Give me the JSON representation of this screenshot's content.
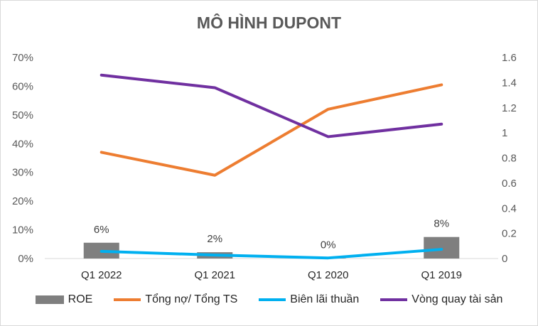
{
  "chart_data": {
    "type": "bar+line",
    "title": "MÔ HÌNH DUPONT",
    "categories": [
      "Q1 2022",
      "Q1 2021",
      "Q1 2020",
      "Q1 2019"
    ],
    "left_axis": {
      "ylim": [
        0,
        0.7
      ],
      "ticks": [
        0,
        0.1,
        0.2,
        0.3,
        0.4,
        0.5,
        0.6,
        0.7
      ],
      "tick_labels": [
        "0%",
        "10%",
        "20%",
        "30%",
        "40%",
        "50%",
        "60%",
        "70%"
      ]
    },
    "right_axis": {
      "ylim": [
        0,
        1.6
      ],
      "ticks": [
        0,
        0.2,
        0.4,
        0.6,
        0.8,
        1,
        1.2,
        1.4,
        1.6
      ],
      "tick_labels": [
        "0",
        "0.2",
        "0.4",
        "0.6",
        "0.8",
        "1",
        "1.2",
        "1.4",
        "1.6"
      ]
    },
    "grid": false,
    "legend_position": "bottom",
    "series": [
      {
        "name": "ROE",
        "type": "bar",
        "axis": "left",
        "color": "#7f7f7f",
        "values": [
          0.055,
          0.022,
          0.001,
          0.075
        ],
        "labels": [
          "6%",
          "2%",
          "0%",
          "8%"
        ]
      },
      {
        "name": "Tổng nợ/ Tổng TS",
        "type": "line",
        "axis": "left",
        "color": "#ed7d31",
        "values": [
          0.37,
          0.29,
          0.52,
          0.605
        ]
      },
      {
        "name": "Biên lãi thuần",
        "type": "line",
        "axis": "left",
        "color": "#00b0f0",
        "values": [
          0.025,
          0.012,
          0.002,
          0.032
        ]
      },
      {
        "name": "Vòng quay tài sản",
        "type": "line",
        "axis": "right",
        "color": "#7030a0",
        "values": [
          1.46,
          1.36,
          0.97,
          1.07
        ]
      }
    ]
  }
}
